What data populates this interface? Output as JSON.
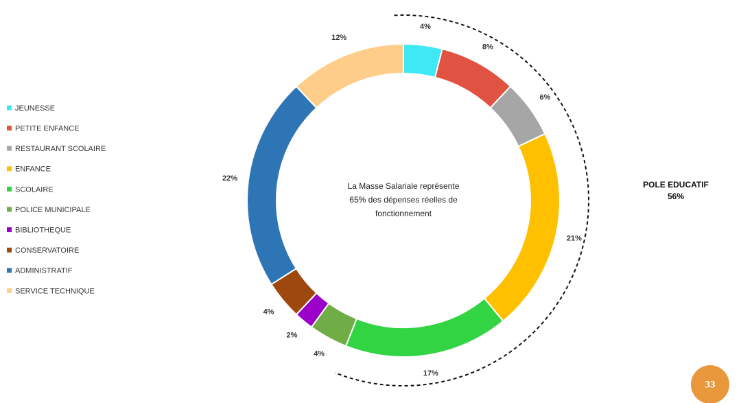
{
  "chart_data": {
    "type": "donut",
    "categories": [
      "JEUNESSE",
      "PETITE ENFANCE",
      "RESTAURANT SCOLAIRE",
      "ENFANCE",
      "SCOLAIRE",
      "POLICE MUNICIPALE",
      "BIBLIOTHEQUE",
      "CONSERVATOIRE",
      "ADMINISTRATIF",
      "SERVICE TECHNIQUE"
    ],
    "values": [
      4,
      8,
      6,
      21,
      17,
      4,
      2,
      4,
      22,
      12
    ],
    "value_labels": [
      "4%",
      "8%",
      "6%",
      "21%",
      "17%",
      "4%",
      "2%",
      "4%",
      "22%",
      "12%"
    ],
    "colors": [
      "#3ee8f5",
      "#e05343",
      "#a6a6a6",
      "#ffc000",
      "#33d444",
      "#70ad47",
      "#9a00c8",
      "#9e480e",
      "#2e75b6",
      "#ffcd8a"
    ],
    "legend": "left",
    "center_text": [
      "La Masse Salariale représente",
      "65% des dépenses réelles de",
      "fonctionnement"
    ],
    "annotation": {
      "title": "POLE EDUCATIF",
      "label": "56%",
      "value": 56
    }
  },
  "page_number": "33"
}
